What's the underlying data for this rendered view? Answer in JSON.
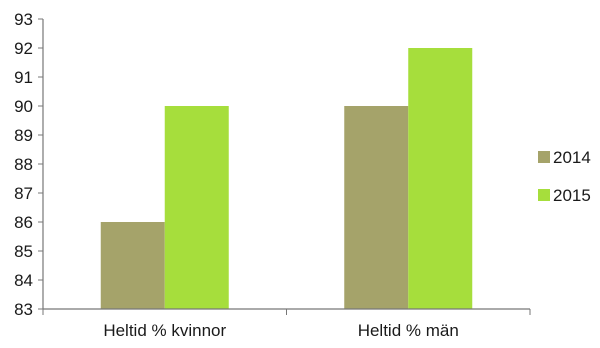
{
  "chart_data": {
    "type": "bar",
    "categories": [
      "Heltid % kvinnor",
      "Heltid % män"
    ],
    "series": [
      {
        "name": "2014",
        "values": [
          86,
          90
        ],
        "color": "#a5a36a"
      },
      {
        "name": "2015",
        "values": [
          90,
          92
        ],
        "color": "#a6de3c"
      }
    ],
    "title": "",
    "xlabel": "",
    "ylabel": "",
    "ylim": [
      83,
      93
    ],
    "yticks": [
      83,
      84,
      85,
      86,
      87,
      88,
      89,
      90,
      91,
      92,
      93
    ],
    "grid": false,
    "legend_position": "right"
  }
}
